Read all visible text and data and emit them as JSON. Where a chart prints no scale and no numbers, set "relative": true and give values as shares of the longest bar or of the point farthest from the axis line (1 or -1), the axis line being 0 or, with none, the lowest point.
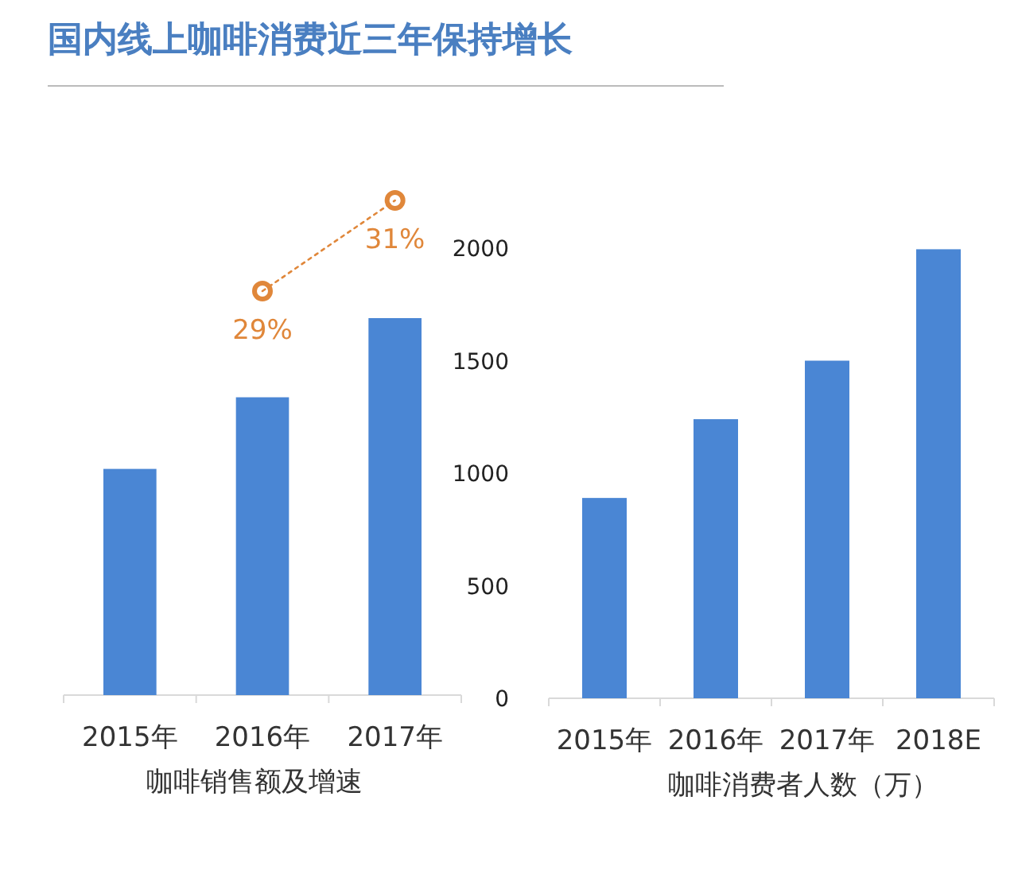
{
  "chart_data": [
    {
      "type": "bar",
      "xlabel": "咖啡销售额及增速",
      "relative": true,
      "categories": [
        "2015年",
        "2016年",
        "2017年"
      ],
      "color": "#4a86d4",
      "values": [
        0.6,
        0.79,
        1
      ]
    },
    {
      "type": "line",
      "title": "国内线上咖啡消费近三年保持增长",
      "categories": [
        null,
        null,
        null
      ],
      "marker": "circle",
      "line_style": "dotted",
      "color": "#e0873a",
      "values": [
        null,
        29,
        31
      ],
      "value_labels": [
        null,
        "29%",
        "31%"
      ]
    },
    {
      "type": "bar",
      "xlabel": "咖啡消费者人数（万）",
      "categories": [
        "2015年",
        "2016年",
        "2017年",
        "2018E"
      ],
      "color": "#4a86d4",
      "values": [
        890,
        1240,
        1500,
        1995
      ],
      "ylim": [
        0,
        2000
      ],
      "yticks": [
        0,
        500,
        1000,
        1500,
        2000
      ]
    }
  ]
}
